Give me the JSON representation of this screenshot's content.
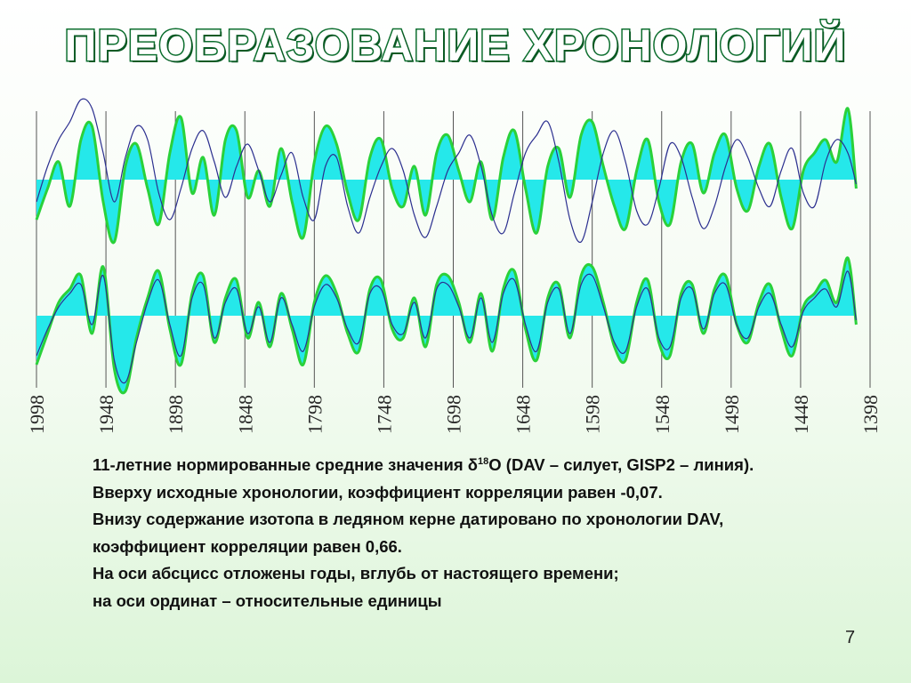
{
  "title": "ПРЕОБРАЗОВАНИЕ ХРОНОЛОГИЙ",
  "caption": {
    "line1_before": "11-летние нормированные средние значения δ",
    "line1_sup": "18",
    "line1_after": "O (DAV – силует, GISP2 – линия).",
    "line2": "Вверху исходные хронологии, коэффициент корреляции равен  -0,07.",
    "line3": "Внизу содержание изотопа в ледяном керне датировано по хронологии DAV,",
    "line4": "коэффициент корреляции равен 0,66.",
    "line5": "На оси абсцисс отложены годы, вглубь от настоящего времени;",
    "line6": "на оси ординат – относительные единицы"
  },
  "page_number": "7",
  "chart_data": {
    "type": "area",
    "x_ticks": [
      "1998",
      "1948",
      "1898",
      "1848",
      "1798",
      "1748",
      "1698",
      "1648",
      "1598",
      "1548",
      "1498",
      "1448",
      "1398"
    ],
    "x_range": [
      1998,
      1398
    ],
    "x_reversed": true,
    "grid": "vertical",
    "panels": [
      {
        "id": "top",
        "correlation": -0.07,
        "series": [
          {
            "style": "area",
            "x": [
              1998,
              1990,
              1982,
              1974,
              1966,
              1958,
              1950,
              1942,
              1934,
              1926,
              1918,
              1910,
              1902,
              1894,
              1886,
              1878,
              1870,
              1862,
              1854,
              1846,
              1838,
              1830,
              1822,
              1814,
              1806,
              1798,
              1790,
              1782,
              1774,
              1766,
              1758,
              1750,
              1742,
              1734,
              1726,
              1718,
              1710,
              1702,
              1694,
              1686,
              1678,
              1670,
              1662,
              1654,
              1646,
              1638,
              1630,
              1622,
              1614,
              1606,
              1598,
              1590,
              1582,
              1574,
              1566,
              1558,
              1550,
              1542,
              1534,
              1526,
              1518,
              1510,
              1502,
              1494,
              1486,
              1478,
              1470,
              1462,
              1454,
              1446,
              1438,
              1430,
              1422,
              1414,
              1408
            ],
            "values": [
              -0.9,
              -0.2,
              0.4,
              -0.6,
              0.9,
              1.2,
              -0.5,
              -1.4,
              0.3,
              0.8,
              -0.2,
              -1.0,
              0.6,
              1.4,
              -0.3,
              0.5,
              -0.8,
              0.9,
              1.1,
              -0.4,
              0.2,
              -0.6,
              0.7,
              -0.5,
              -1.3,
              0.4,
              1.2,
              0.8,
              -0.3,
              -0.9,
              0.5,
              0.9,
              -0.2,
              -0.6,
              0.3,
              -0.8,
              0.6,
              1.0,
              0.2,
              -0.5,
              0.4,
              -0.9,
              0.5,
              1.1,
              -0.2,
              -1.2,
              0.3,
              0.7,
              -0.4,
              1.0,
              1.3,
              0.3,
              -0.6,
              -1.1,
              0.2,
              0.9,
              -0.5,
              -1.0,
              0.4,
              0.8,
              -0.3,
              0.6,
              1.0,
              -0.2,
              -0.7,
              0.3,
              0.8,
              -0.4,
              -1.1,
              0.2,
              0.6,
              0.9,
              0.4,
              1.6,
              -0.2
            ]
          },
          {
            "style": "line",
            "x": [
              1998,
              1990,
              1982,
              1974,
              1966,
              1958,
              1950,
              1942,
              1934,
              1926,
              1918,
              1910,
              1902,
              1894,
              1886,
              1878,
              1870,
              1862,
              1854,
              1846,
              1838,
              1830,
              1822,
              1814,
              1806,
              1798,
              1790,
              1782,
              1774,
              1766,
              1758,
              1750,
              1742,
              1734,
              1726,
              1718,
              1710,
              1702,
              1694,
              1686,
              1678,
              1670,
              1662,
              1654,
              1646,
              1638,
              1630,
              1622,
              1614,
              1606,
              1598,
              1590,
              1582,
              1574,
              1566,
              1558,
              1550,
              1542,
              1534,
              1526,
              1518,
              1510,
              1502,
              1494,
              1486,
              1478,
              1470,
              1462,
              1454,
              1446,
              1438,
              1430,
              1422,
              1414,
              1408
            ],
            "values": [
              -0.5,
              0.3,
              0.9,
              1.3,
              1.8,
              1.6,
              0.6,
              -0.5,
              0.5,
              1.2,
              0.9,
              -0.3,
              -0.9,
              -0.2,
              0.7,
              1.1,
              0.4,
              -0.4,
              0.3,
              0.8,
              0.2,
              -0.5,
              0.1,
              0.6,
              -0.4,
              -0.9,
              0.3,
              0.5,
              -0.6,
              -1.2,
              -0.4,
              0.3,
              0.7,
              0.2,
              -0.8,
              -1.3,
              -0.6,
              0.2,
              0.6,
              1.0,
              0.3,
              -0.8,
              -1.2,
              -0.3,
              0.6,
              1.0,
              1.3,
              0.4,
              -0.9,
              -1.4,
              -0.5,
              0.6,
              1.1,
              0.4,
              -0.7,
              -1.0,
              -0.2,
              0.8,
              0.5,
              -0.4,
              -1.1,
              -0.6,
              0.3,
              0.9,
              0.5,
              -0.2,
              -0.6,
              0.2,
              0.7,
              -0.3,
              -0.6,
              0.4,
              0.9,
              0.6,
              -0.1
            ]
          }
        ]
      },
      {
        "id": "bottom",
        "correlation": 0.66,
        "series": [
          {
            "style": "area",
            "x": [
              1998,
              1990,
              1982,
              1974,
              1966,
              1958,
              1950,
              1942,
              1934,
              1926,
              1918,
              1910,
              1902,
              1894,
              1886,
              1878,
              1870,
              1862,
              1854,
              1846,
              1838,
              1830,
              1822,
              1814,
              1806,
              1798,
              1790,
              1782,
              1774,
              1766,
              1758,
              1750,
              1742,
              1734,
              1726,
              1718,
              1710,
              1702,
              1694,
              1686,
              1678,
              1670,
              1662,
              1654,
              1646,
              1638,
              1630,
              1622,
              1614,
              1606,
              1598,
              1590,
              1582,
              1574,
              1566,
              1558,
              1550,
              1542,
              1534,
              1526,
              1518,
              1510,
              1502,
              1494,
              1486,
              1478,
              1470,
              1462,
              1454,
              1446,
              1438,
              1430,
              1422,
              1414,
              1408
            ],
            "values": [
              -1.1,
              -0.4,
              0.3,
              0.6,
              0.9,
              -0.4,
              1.1,
              -1.2,
              -1.7,
              -0.5,
              0.4,
              1.0,
              -0.3,
              -1.1,
              0.5,
              0.9,
              -0.6,
              0.4,
              0.8,
              -0.5,
              0.3,
              -0.7,
              0.5,
              -0.3,
              -1.1,
              0.3,
              0.9,
              0.5,
              -0.4,
              -0.8,
              0.6,
              0.8,
              -0.3,
              -0.5,
              0.4,
              -0.7,
              0.7,
              0.9,
              0.3,
              -0.6,
              0.5,
              -0.8,
              0.6,
              1.0,
              -0.3,
              -1.0,
              0.4,
              0.7,
              -0.5,
              0.9,
              1.1,
              0.3,
              -0.7,
              -1.0,
              0.3,
              0.8,
              -0.6,
              -0.9,
              0.5,
              0.7,
              -0.4,
              0.6,
              0.9,
              -0.2,
              -0.6,
              0.3,
              0.7,
              -0.3,
              -0.9,
              0.2,
              0.5,
              0.8,
              0.3,
              1.3,
              -0.2
            ]
          },
          {
            "style": "line",
            "x": [
              1998,
              1990,
              1982,
              1974,
              1966,
              1958,
              1950,
              1942,
              1934,
              1926,
              1918,
              1910,
              1902,
              1894,
              1886,
              1878,
              1870,
              1862,
              1854,
              1846,
              1838,
              1830,
              1822,
              1814,
              1806,
              1798,
              1790,
              1782,
              1774,
              1766,
              1758,
              1750,
              1742,
              1734,
              1726,
              1718,
              1710,
              1702,
              1694,
              1686,
              1678,
              1670,
              1662,
              1654,
              1646,
              1638,
              1630,
              1622,
              1614,
              1606,
              1598,
              1590,
              1582,
              1574,
              1566,
              1558,
              1550,
              1542,
              1534,
              1526,
              1518,
              1510,
              1502,
              1494,
              1486,
              1478,
              1470,
              1462,
              1454,
              1446,
              1438,
              1430,
              1422,
              1414,
              1408
            ],
            "values": [
              -0.9,
              -0.3,
              0.2,
              0.5,
              0.7,
              -0.2,
              0.9,
              -1.0,
              -1.5,
              -0.6,
              0.3,
              0.8,
              -0.2,
              -0.9,
              0.4,
              0.7,
              -0.5,
              0.3,
              0.6,
              -0.4,
              0.2,
              -0.6,
              0.4,
              -0.2,
              -0.8,
              0.2,
              0.7,
              0.4,
              -0.3,
              -0.6,
              0.5,
              0.6,
              -0.2,
              -0.4,
              0.3,
              -0.5,
              0.6,
              0.7,
              0.2,
              -0.5,
              0.4,
              -0.6,
              0.5,
              0.8,
              -0.2,
              -0.8,
              0.3,
              0.6,
              -0.4,
              0.7,
              0.9,
              0.2,
              -0.6,
              -0.8,
              0.2,
              0.6,
              -0.5,
              -0.7,
              0.4,
              0.6,
              -0.3,
              0.5,
              0.7,
              -0.2,
              -0.5,
              0.2,
              0.5,
              -0.2,
              -0.7,
              0.1,
              0.4,
              0.6,
              0.2,
              1.0,
              -0.1
            ]
          }
        ]
      }
    ],
    "colors": {
      "area_fill": "#25e8ea",
      "area_outline": "#2ad13a",
      "line": "#2b2f8f",
      "grid": "#555555"
    }
  }
}
